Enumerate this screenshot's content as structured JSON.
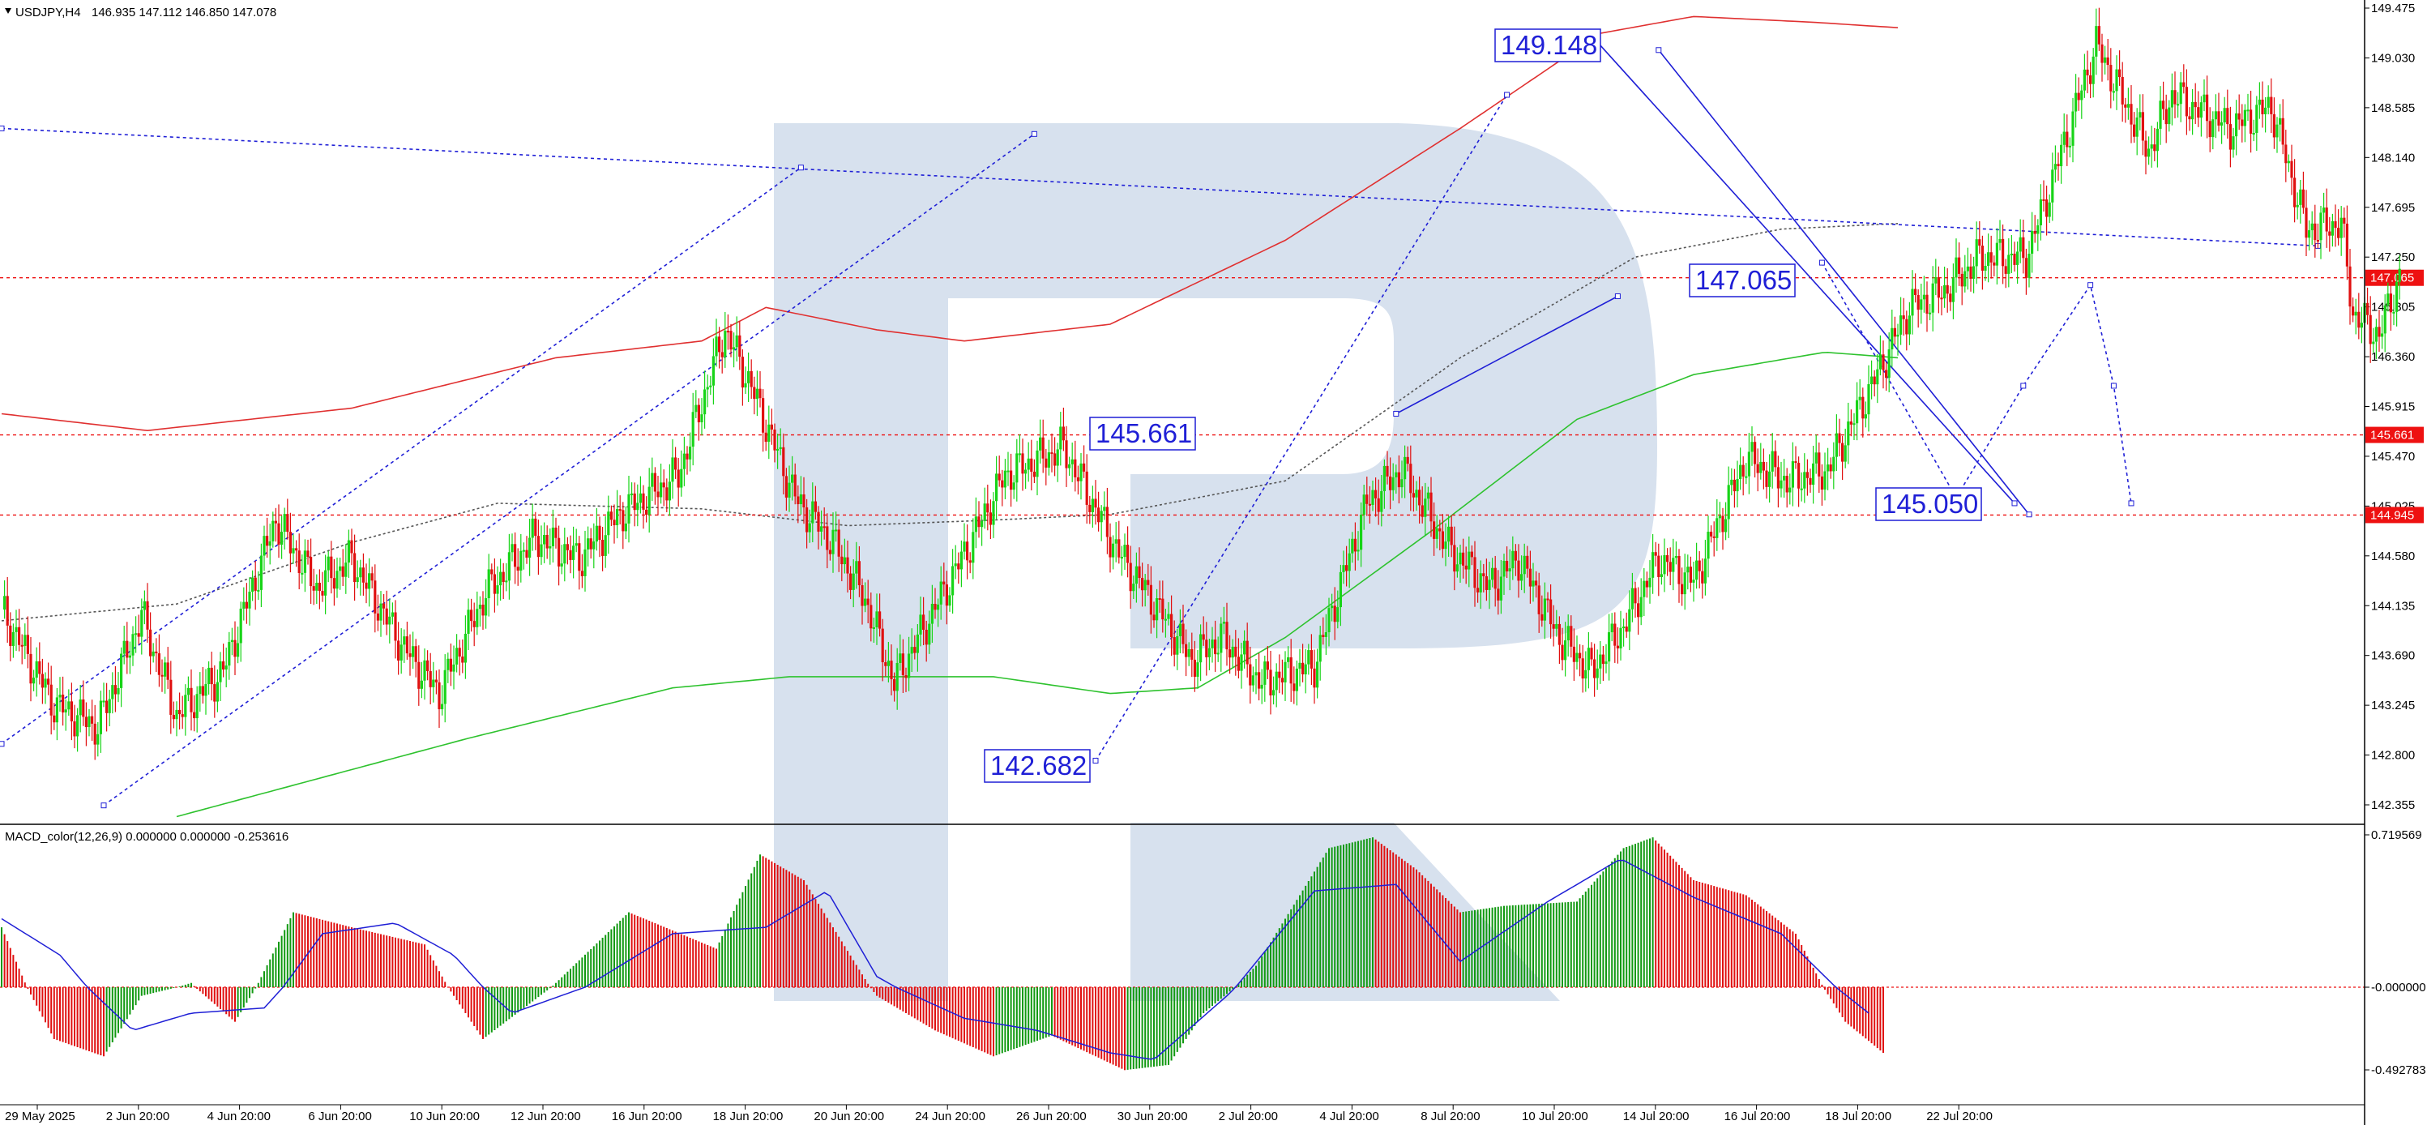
{
  "header": {
    "symbol": "USDJPY,H4",
    "ohlc": "146.935 147.112 146.850 147.078"
  },
  "indicator": {
    "label": "MACD_color(12,26,9) 0.000000 0.000000 -0.253616",
    "axis_labels": [
      "0.719569",
      "-0.000000",
      "-0.492783"
    ]
  },
  "annotations": [
    "149.148",
    "147.065",
    "145.661",
    "145.050",
    "142.682"
  ],
  "price_tags": [
    "147.065",
    "145.661",
    "144.945"
  ],
  "colors": {
    "bull": "#18d418",
    "bear": "#e01010",
    "upper_band": "#e03030",
    "lower_band": "#2ec22e",
    "annotation": "#1f1fd6",
    "tag_bg": "#ee1111",
    "watermark": "#d7e1ee"
  },
  "chart_data": {
    "type": "candlestick",
    "instrument": "USDJPY",
    "timeframe": "H4",
    "y_ticks": [
      149.475,
      149.03,
      148.585,
      148.14,
      147.695,
      147.25,
      146.805,
      146.36,
      145.915,
      145.47,
      145.025,
      144.58,
      144.135,
      143.69,
      143.245,
      142.8,
      142.355
    ],
    "x_ticks": [
      "29 May 2025",
      "2 Jun 20:00",
      "4 Jun 20:00",
      "6 Jun 20:00",
      "10 Jun 20:00",
      "12 Jun 20:00",
      "16 Jun 20:00",
      "18 Jun 20:00",
      "20 Jun 20:00",
      "24 Jun 20:00",
      "26 Jun 20:00",
      "30 Jun 20:00",
      "2 Jul 20:00",
      "4 Jul 20:00",
      "8 Jul 20:00",
      "10 Jul 20:00",
      "14 Jul 20:00",
      "16 Jul 20:00",
      "18 Jul 20:00",
      "22 Jul 20:00"
    ],
    "horizontal_levels": [
      147.065,
      145.661,
      144.945
    ],
    "close_path": [
      [
        0,
        144.1
      ],
      [
        18,
        143.25
      ],
      [
        33,
        143.05
      ],
      [
        48,
        144.05
      ],
      [
        60,
        143.15
      ],
      [
        76,
        143.55
      ],
      [
        94,
        144.9
      ],
      [
        108,
        144.3
      ],
      [
        120,
        144.55
      ],
      [
        138,
        143.75
      ],
      [
        150,
        143.35
      ],
      [
        166,
        144.25
      ],
      [
        183,
        144.75
      ],
      [
        198,
        144.55
      ],
      [
        212,
        144.95
      ],
      [
        232,
        145.3
      ],
      [
        248,
        146.6
      ],
      [
        256,
        146.15
      ],
      [
        272,
        145.1
      ],
      [
        285,
        144.7
      ],
      [
        296,
        144.2
      ],
      [
        306,
        143.45
      ],
      [
        326,
        144.4
      ],
      [
        344,
        145.3
      ],
      [
        364,
        145.55
      ],
      [
        383,
        144.6
      ],
      [
        394,
        144.2
      ],
      [
        408,
        143.65
      ],
      [
        418,
        143.85
      ],
      [
        432,
        143.45
      ],
      [
        450,
        143.6
      ],
      [
        468,
        145.05
      ],
      [
        480,
        145.35
      ],
      [
        496,
        144.65
      ],
      [
        510,
        144.3
      ],
      [
        520,
        144.55
      ],
      [
        534,
        143.85
      ],
      [
        545,
        143.55
      ],
      [
        556,
        143.95
      ],
      [
        568,
        144.55
      ],
      [
        580,
        144.35
      ],
      [
        598,
        145.45
      ],
      [
        612,
        145.25
      ],
      [
        626,
        145.35
      ],
      [
        642,
        146.15
      ],
      [
        654,
        146.8
      ],
      [
        666,
        146.95
      ],
      [
        678,
        147.25
      ],
      [
        694,
        147.25
      ],
      [
        700,
        147.7
      ],
      [
        718,
        149.15
      ],
      [
        736,
        148.2
      ],
      [
        744,
        148.7
      ],
      [
        764,
        148.4
      ],
      [
        778,
        148.6
      ],
      [
        790,
        147.5
      ],
      [
        802,
        147.55
      ],
      [
        806,
        146.75
      ],
      [
        815,
        146.55
      ],
      [
        822,
        147.08
      ]
    ],
    "upper_band_path": [
      [
        0,
        145.85
      ],
      [
        50,
        145.7
      ],
      [
        120,
        145.9
      ],
      [
        190,
        146.35
      ],
      [
        240,
        146.5
      ],
      [
        262,
        146.8
      ],
      [
        300,
        146.6
      ],
      [
        330,
        146.5
      ],
      [
        380,
        146.65
      ],
      [
        440,
        147.4
      ],
      [
        500,
        148.4
      ],
      [
        548,
        149.25
      ],
      [
        580,
        149.4
      ],
      [
        620,
        149.35
      ],
      [
        650,
        149.3
      ]
    ],
    "lower_band_path": [
      [
        60,
        142.25
      ],
      [
        160,
        142.95
      ],
      [
        230,
        143.4
      ],
      [
        270,
        143.5
      ],
      [
        340,
        143.5
      ],
      [
        380,
        143.35
      ],
      [
        410,
        143.4
      ],
      [
        440,
        143.85
      ],
      [
        490,
        144.8
      ],
      [
        540,
        145.8
      ],
      [
        580,
        146.2
      ],
      [
        625,
        146.4
      ],
      [
        650,
        146.35
      ]
    ],
    "ma_path": [
      [
        0,
        144.0
      ],
      [
        60,
        144.15
      ],
      [
        120,
        144.7
      ],
      [
        170,
        145.05
      ],
      [
        240,
        145.0
      ],
      [
        290,
        144.85
      ],
      [
        340,
        144.9
      ],
      [
        380,
        144.95
      ],
      [
        440,
        145.25
      ],
      [
        500,
        146.35
      ],
      [
        560,
        147.25
      ],
      [
        610,
        147.5
      ],
      [
        650,
        147.55
      ]
    ],
    "macd": {
      "name": "MACD_color(12,26,9)",
      "y_ticks": [
        0.719569,
        0.0,
        -0.492783
      ],
      "histogram_path": [
        [
          0,
          0.28
        ],
        [
          18,
          -0.3
        ],
        [
          35,
          -0.4
        ],
        [
          48,
          -0.05
        ],
        [
          65,
          0.02
        ],
        [
          80,
          -0.2
        ],
        [
          100,
          0.35
        ],
        [
          120,
          0.28
        ],
        [
          145,
          0.2
        ],
        [
          165,
          -0.3
        ],
        [
          190,
          0.02
        ],
        [
          215,
          0.35
        ],
        [
          245,
          0.18
        ],
        [
          260,
          0.62
        ],
        [
          275,
          0.5
        ],
        [
          300,
          -0.05
        ],
        [
          320,
          -0.25
        ],
        [
          340,
          -0.4
        ],
        [
          360,
          -0.28
        ],
        [
          385,
          -0.48
        ],
        [
          400,
          -0.45
        ],
        [
          412,
          -0.15
        ],
        [
          430,
          0.1
        ],
        [
          455,
          0.65
        ],
        [
          470,
          0.7
        ],
        [
          485,
          0.55
        ],
        [
          500,
          0.35
        ],
        [
          515,
          0.38
        ],
        [
          540,
          0.4
        ],
        [
          556,
          0.65
        ],
        [
          566,
          0.7
        ],
        [
          580,
          0.5
        ],
        [
          598,
          0.43
        ],
        [
          615,
          0.25
        ],
        [
          632,
          -0.2
        ],
        [
          645,
          -0.38
        ]
      ],
      "signal_path": [
        [
          0,
          0.32
        ],
        [
          20,
          0.15
        ],
        [
          45,
          -0.25
        ],
        [
          65,
          -0.15
        ],
        [
          90,
          -0.12
        ],
        [
          110,
          0.25
        ],
        [
          135,
          0.3
        ],
        [
          155,
          0.15
        ],
        [
          175,
          -0.15
        ],
        [
          200,
          0.0
        ],
        [
          230,
          0.25
        ],
        [
          262,
          0.28
        ],
        [
          283,
          0.45
        ],
        [
          300,
          0.05
        ],
        [
          330,
          -0.18
        ],
        [
          355,
          -0.25
        ],
        [
          380,
          -0.38
        ],
        [
          395,
          -0.42
        ],
        [
          420,
          -0.05
        ],
        [
          450,
          0.45
        ],
        [
          478,
          0.48
        ],
        [
          500,
          0.12
        ],
        [
          530,
          0.4
        ],
        [
          555,
          0.6
        ],
        [
          580,
          0.42
        ],
        [
          610,
          0.25
        ],
        [
          640,
          -0.15
        ]
      ]
    },
    "trend_lines": [
      {
        "style": "dotted",
        "from": [
          0,
          148.4
        ],
        "to": [
          794,
          147.35
        ]
      },
      {
        "style": "dotted",
        "from": [
          35,
          142.35
        ],
        "to": [
          354,
          148.35
        ]
      },
      {
        "style": "dotted",
        "from": [
          375,
          142.75
        ],
        "to": [
          516,
          148.7
        ]
      },
      {
        "style": "dotted",
        "from": [
          0,
          142.9
        ],
        "to": [
          274,
          148.05
        ]
      },
      {
        "style": "solid",
        "from": [
          478,
          145.85
        ],
        "to": [
          554,
          146.9
        ]
      },
      {
        "style": "solid",
        "from": [
          546,
          149.2
        ],
        "to": [
          690,
          145.05
        ]
      },
      {
        "style": "solid",
        "from": [
          568,
          149.1
        ],
        "to": [
          695,
          144.95
        ]
      }
    ],
    "projection": [
      [
        624,
        147.2
      ],
      [
        670,
        145.1
      ],
      [
        693,
        146.1
      ],
      [
        716,
        147.0
      ],
      [
        724,
        146.1
      ],
      [
        730,
        145.05
      ]
    ]
  }
}
